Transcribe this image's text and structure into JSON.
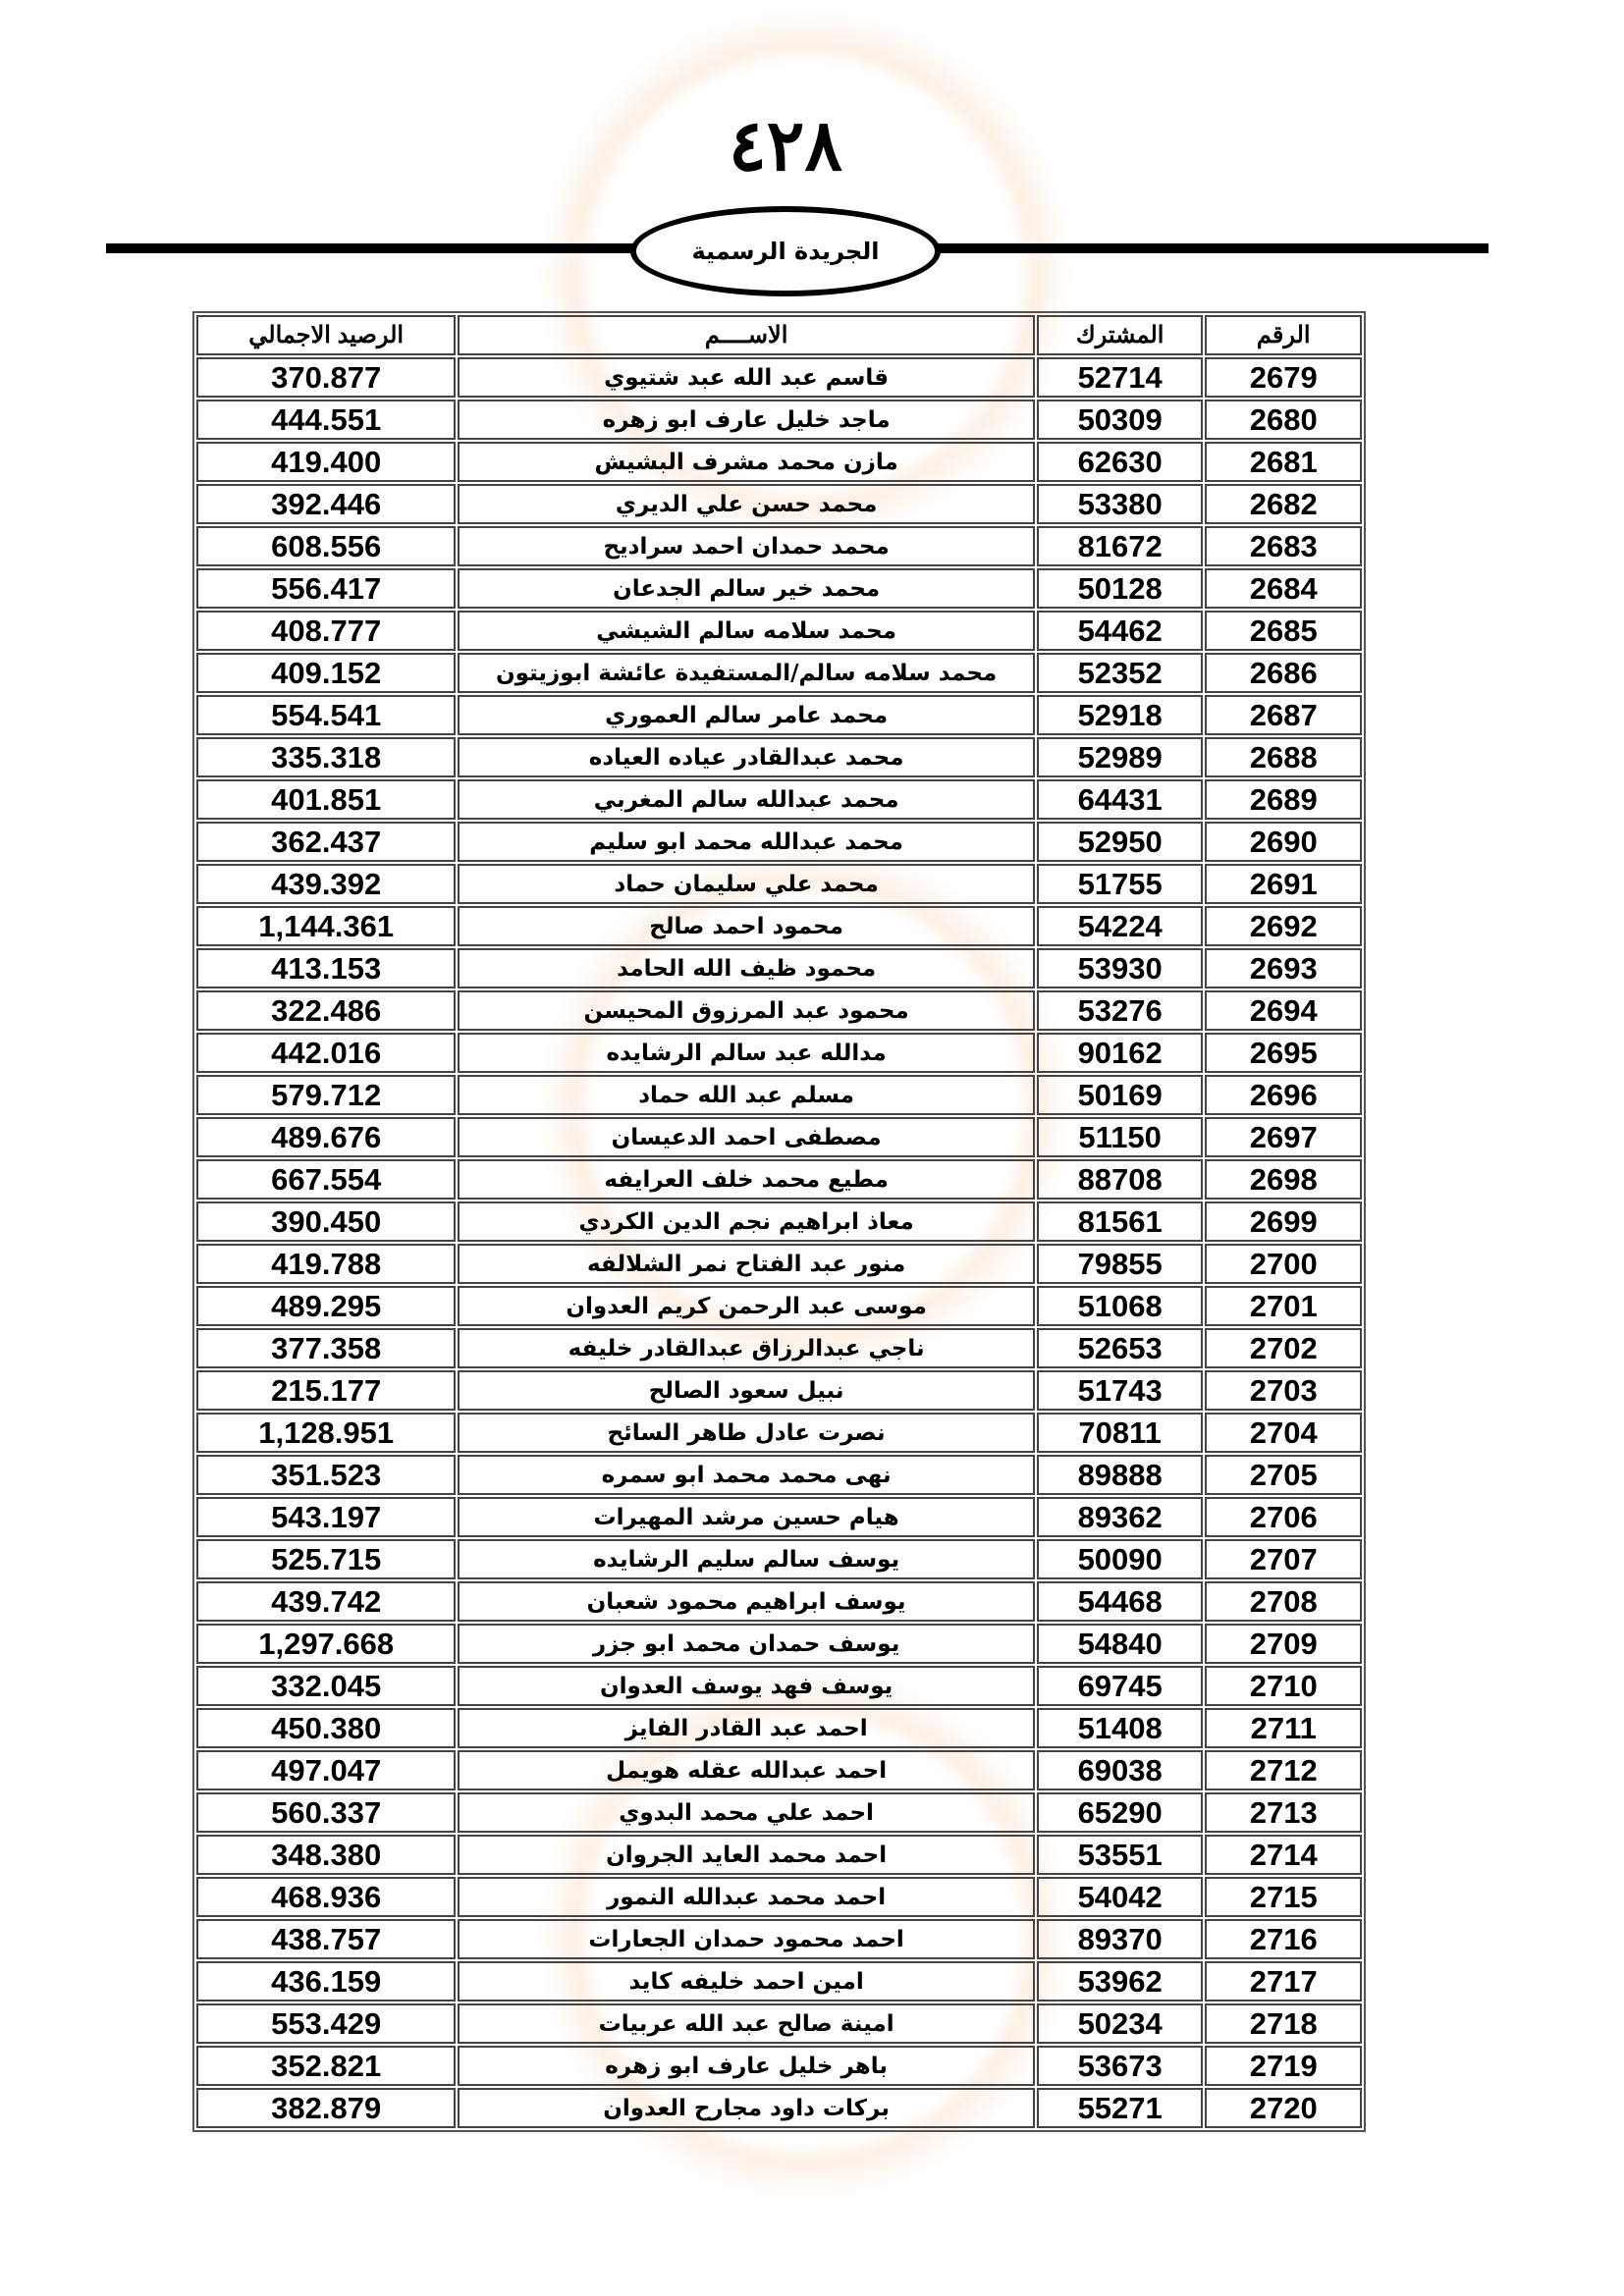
{
  "header": {
    "page_number": "٤٢٨",
    "publication": "الجريدة الرسمية"
  },
  "table": {
    "columns": [
      "الرقم",
      "المشترك",
      "الاســــم",
      "الرصيد الاجمالي"
    ],
    "rows": [
      [
        "2679",
        "52714",
        "قاسم عبد الله عبد شتيوي",
        "370.877"
      ],
      [
        "2680",
        "50309",
        "ماجد خليل عارف ابو زهره",
        "444.551"
      ],
      [
        "2681",
        "62630",
        "مازن محمد مشرف البشيش",
        "419.400"
      ],
      [
        "2682",
        "53380",
        "محمد حسن علي الديري",
        "392.446"
      ],
      [
        "2683",
        "81672",
        "محمد حمدان احمد سراديح",
        "608.556"
      ],
      [
        "2684",
        "50128",
        "محمد خير سالم الجدعان",
        "556.417"
      ],
      [
        "2685",
        "54462",
        "محمد سلامه سالم الشيشي",
        "408.777"
      ],
      [
        "2686",
        "52352",
        "محمد سلامه سالم/المستفيدة عائشة ابوزيتون",
        "409.152"
      ],
      [
        "2687",
        "52918",
        "محمد عامر سالم العموري",
        "554.541"
      ],
      [
        "2688",
        "52989",
        "محمد عبدالقادر عياده العياده",
        "335.318"
      ],
      [
        "2689",
        "64431",
        "محمد عبدالله سالم المغربي",
        "401.851"
      ],
      [
        "2690",
        "52950",
        "محمد عبدالله محمد ابو سليم",
        "362.437"
      ],
      [
        "2691",
        "51755",
        "محمد علي سليمان حماد",
        "439.392"
      ],
      [
        "2692",
        "54224",
        "محمود احمد صالح",
        "1,144.361"
      ],
      [
        "2693",
        "53930",
        "محمود ظيف الله الحامد",
        "413.153"
      ],
      [
        "2694",
        "53276",
        "محمود عبد المرزوق المحيسن",
        "322.486"
      ],
      [
        "2695",
        "90162",
        "مدالله عبد سالم الرشايده",
        "442.016"
      ],
      [
        "2696",
        "50169",
        "مسلم عبد الله حماد",
        "579.712"
      ],
      [
        "2697",
        "51150",
        "مصطفى احمد الدعيسان",
        "489.676"
      ],
      [
        "2698",
        "88708",
        "مطيع محمد خلف العرايفه",
        "667.554"
      ],
      [
        "2699",
        "81561",
        "معاذ ابراهيم نجم الدين الكردي",
        "390.450"
      ],
      [
        "2700",
        "79855",
        "منور عبد الفتاح نمر الشلالفه",
        "419.788"
      ],
      [
        "2701",
        "51068",
        "موسى عبد الرحمن كريم العدوان",
        "489.295"
      ],
      [
        "2702",
        "52653",
        "ناجي عبدالرزاق عبدالقادر خليفه",
        "377.358"
      ],
      [
        "2703",
        "51743",
        "نبيل  سعود الصالح",
        "215.177"
      ],
      [
        "2704",
        "70811",
        "نصرت عادل طاهر السائح",
        "1,128.951"
      ],
      [
        "2705",
        "89888",
        "نهى محمد محمد ابو سمره",
        "351.523"
      ],
      [
        "2706",
        "89362",
        "هيام حسين مرشد المهيرات",
        "543.197"
      ],
      [
        "2707",
        "50090",
        "يوسف  سالم  سليم  الرشايده",
        "525.715"
      ],
      [
        "2708",
        "54468",
        "يوسف ابراهيم محمود شعبان",
        "439.742"
      ],
      [
        "2709",
        "54840",
        "يوسف حمدان محمد ابو جزر",
        "1,297.668"
      ],
      [
        "2710",
        "69745",
        "يوسف فهد يوسف العدوان",
        "332.045"
      ],
      [
        "2711",
        "51408",
        "احمد عبد القادر الفايز",
        "450.380"
      ],
      [
        "2712",
        "69038",
        "احمد عبدالله عقله هويمل",
        "497.047"
      ],
      [
        "2713",
        "65290",
        "احمد علي محمد البدوي",
        "560.337"
      ],
      [
        "2714",
        "53551",
        "احمد محمد العايد الجروان",
        "348.380"
      ],
      [
        "2715",
        "54042",
        "احمد محمد عبدالله النمور",
        "468.936"
      ],
      [
        "2716",
        "89370",
        "احمد محمود حمدان الجعارات",
        "438.757"
      ],
      [
        "2717",
        "53962",
        "امين احمد خليفه كايد",
        "436.159"
      ],
      [
        "2718",
        "50234",
        "امينة صالح عبد الله عربيات",
        "553.429"
      ],
      [
        "2719",
        "53673",
        "باهر خليل عارف ابو زهره",
        "352.821"
      ],
      [
        "2720",
        "55271",
        "بركات  داود مجارح العدوان",
        "382.879"
      ]
    ]
  }
}
